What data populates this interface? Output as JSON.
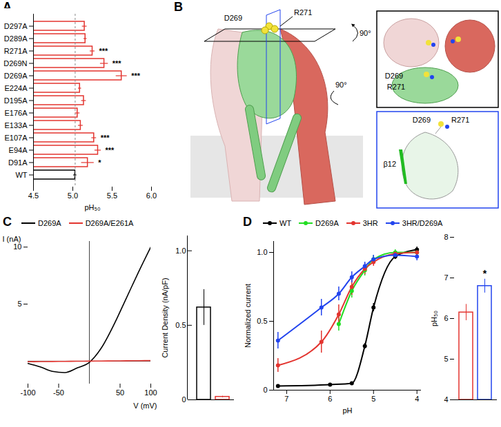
{
  "chart_data": [
    {
      "type": "bar",
      "title": "A",
      "orientation": "horizontal",
      "categories": [
        "D297A",
        "D289A",
        "R271A",
        "D269N",
        "D269A",
        "E224A",
        "D195A",
        "E176A",
        "E133A",
        "E107A",
        "E94A",
        "D91A",
        "WT"
      ],
      "values": [
        5.15,
        5.16,
        5.25,
        5.4,
        5.62,
        5.09,
        5.14,
        5.06,
        5.1,
        5.27,
        5.32,
        5.19,
        5.03
      ],
      "errors": [
        0.03,
        0.02,
        0.03,
        0.05,
        0.07,
        0.02,
        0.03,
        0.03,
        0.03,
        0.03,
        0.04,
        0.08,
        0.02
      ],
      "significance": [
        null,
        null,
        "***",
        "***",
        "***",
        null,
        null,
        null,
        null,
        "***",
        "***",
        "*",
        null
      ],
      "colors": [
        "#e3342f",
        "#e3342f",
        "#e3342f",
        "#e3342f",
        "#e3342f",
        "#e3342f",
        "#e3342f",
        "#e3342f",
        "#e3342f",
        "#e3342f",
        "#e3342f",
        "#e3342f",
        "#000000"
      ],
      "x_label": "pH₅₀",
      "xlim": [
        4.5,
        6.0
      ],
      "xticks": [
        4.5,
        {
          "value": 5,
          "label": "5.0"
        },
        5.5,
        {
          "value": 6,
          "label": "6.0"
        }
      ]
    },
    {
      "type": "line",
      "title": "C",
      "legend": "top",
      "x_label": "V (mV)",
      "y_label": "I (nA)",
      "xlim": [
        -100,
        100
      ],
      "xticks": [
        -100,
        -50,
        50,
        100
      ],
      "ylim": [
        -2,
        10.5
      ],
      "yticks": [
        5,
        10
      ],
      "series": [
        {
          "name": "D269A",
          "color": "#000000",
          "x": [
            -100,
            -80,
            -60,
            -40,
            -20,
            0,
            20,
            40,
            60,
            80,
            100
          ],
          "values": [
            -0.2,
            -0.5,
            -0.9,
            -1.0,
            -0.6,
            -0.1,
            1.2,
            3.2,
            5.5,
            7.8,
            10.0
          ]
        },
        {
          "name": "D269A/E261A",
          "color": "#e3342f",
          "x": [
            -100,
            -80,
            -60,
            -40,
            -20,
            0,
            20,
            40,
            60,
            80,
            100
          ],
          "values": [
            -0.05,
            -0.04,
            -0.03,
            -0.02,
            -0.01,
            0,
            0.01,
            0.02,
            0.03,
            0.04,
            0.05
          ]
        }
      ]
    },
    {
      "type": "bar",
      "tick_labels": "y",
      "categories": [
        "D269A",
        "D269A/E261A"
      ],
      "values": [
        0.62,
        0.02
      ],
      "errors": [
        0.12,
        0.005
      ],
      "colors": [
        "#000000",
        "#e3342f"
      ],
      "y_label": "Current Density (nA/pF)",
      "ylim": [
        0,
        1.1
      ],
      "yticks": [
        0,
        0.5,
        {
          "value": 1,
          "label": "1.0"
        }
      ]
    },
    {
      "type": "line",
      "title": "D",
      "legend": "top",
      "marker": "circle",
      "x_label": "pH",
      "y_label": "Normalized current",
      "xlim": [
        7.3,
        3.9
      ],
      "xticks": [
        7,
        6,
        5,
        4
      ],
      "ylim": [
        0,
        1.08
      ],
      "yticks": [
        0,
        0.5,
        {
          "value": 1,
          "label": "1.0"
        }
      ],
      "series": [
        {
          "name": "WT",
          "color": "#000000",
          "x": [
            7.2,
            6.0,
            5.5,
            5.2,
            5.0,
            4.5,
            4.0
          ],
          "values": [
            0.03,
            0.04,
            0.05,
            0.32,
            0.6,
            0.97,
            1.02
          ],
          "errors": [
            0.01,
            0.01,
            0.01,
            0.02,
            0.03,
            0.02,
            0.02
          ]
        },
        {
          "name": "D269A",
          "color": "#22dd22",
          "x": [
            5.8,
            5.5,
            5.2,
            5.0,
            4.5,
            4.0
          ],
          "values": [
            0.48,
            0.72,
            0.87,
            0.95,
            1.0,
            1.0
          ],
          "errors": [
            0.05,
            0.05,
            0.04,
            0.03,
            0.02,
            0.02
          ]
        },
        {
          "name": "3HR",
          "color": "#e3342f",
          "x": [
            7.2,
            6.2,
            5.8,
            5.5,
            5.2,
            5.0,
            4.5,
            4.0
          ],
          "values": [
            0.18,
            0.35,
            0.55,
            0.75,
            0.88,
            0.93,
            0.99,
            1.0
          ],
          "errors": [
            0.05,
            0.08,
            0.07,
            0.06,
            0.04,
            0.03,
            0.02,
            0.02
          ]
        },
        {
          "name": "3HR/D269A",
          "color": "#2244ee",
          "x": [
            7.2,
            6.2,
            5.8,
            5.5,
            5.2,
            5.0,
            4.5,
            4.0
          ],
          "values": [
            0.36,
            0.6,
            0.7,
            0.82,
            0.9,
            0.95,
            0.98,
            0.97
          ],
          "errors": [
            0.06,
            0.06,
            0.05,
            0.04,
            0.03,
            0.03,
            0.02,
            0.03
          ]
        }
      ]
    },
    {
      "type": "bar",
      "tick_labels": "y",
      "categories": [
        "3HR",
        "3HR/D269A"
      ],
      "values": [
        6.15,
        6.8
      ],
      "errors": [
        0.2,
        0.17
      ],
      "significance": [
        null,
        "*"
      ],
      "colors": [
        "#e3342f",
        "#2244ee"
      ],
      "y_label": "pH₅₀",
      "ylim": [
        4,
        8
      ],
      "yticks": [
        4,
        5,
        6,
        7,
        8
      ]
    }
  ],
  "diagram": {
    "title": "B",
    "main_labels": [
      "D269",
      "R271"
    ],
    "top_inset_labels": [
      "D269",
      "R271"
    ],
    "bottom_inset_labels": [
      "D269",
      "R271",
      "β12"
    ],
    "rotations": [
      "90°",
      "90°"
    ]
  }
}
